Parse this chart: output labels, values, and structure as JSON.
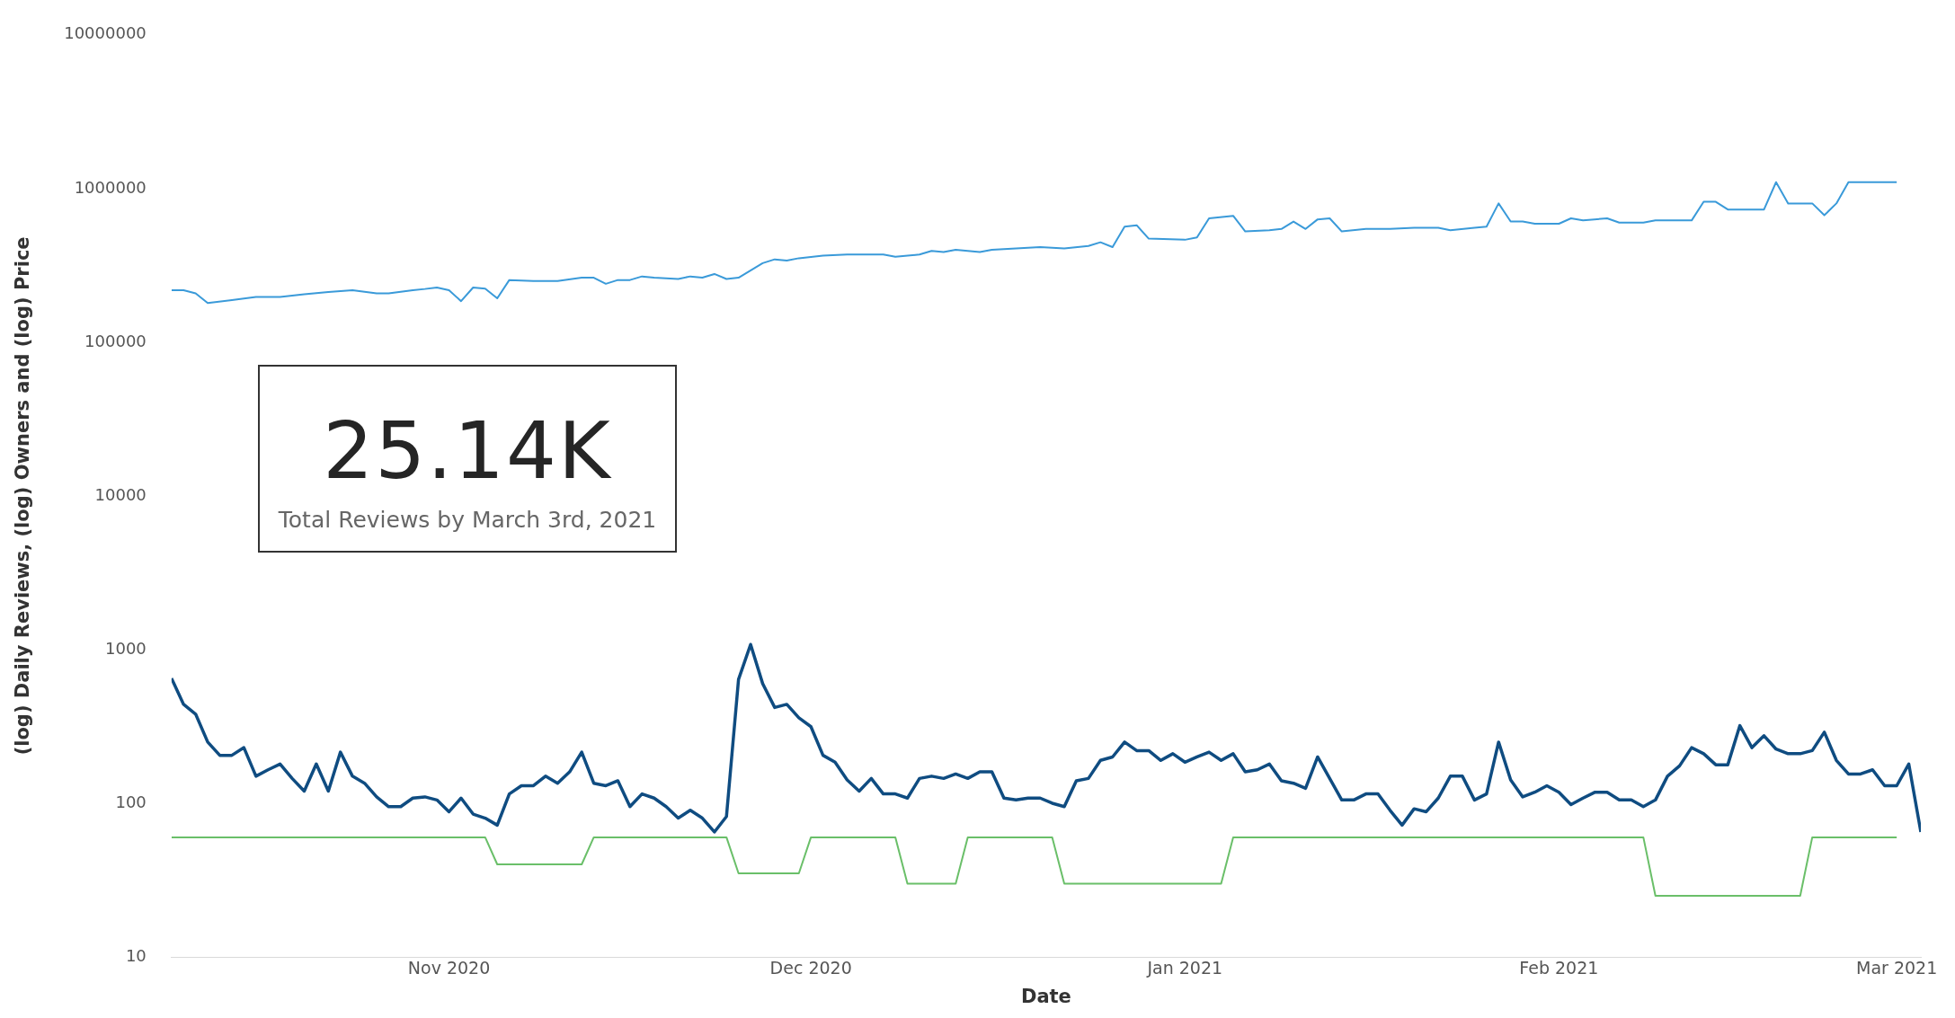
{
  "chart_data": {
    "type": "line",
    "xlabel": "Date",
    "ylabel": "(log) Daily Reviews, (log) Owners and (log) Price",
    "annotations": [
      "25.14K",
      "Total Reviews by March 3rd, 2021"
    ],
    "xticks": [
      {
        "value": "2020-11",
        "label": "Nov 2020"
      },
      {
        "value": "2020-12",
        "label": "Dec 2020"
      },
      {
        "value": "2021-01",
        "label": "Jan 2021"
      },
      {
        "value": "2021-02",
        "label": "Feb 2021"
      },
      {
        "value": "2021-03",
        "label": "Mar 2021"
      }
    ],
    "xlim": [
      "2020-10-09",
      "2021-03-03"
    ],
    "ylim": [
      10,
      10000000
    ],
    "yticks": [
      10,
      100,
      1000,
      10000,
      100000,
      1000000,
      10000000
    ],
    "log": true,
    "grid": false,
    "legend": false,
    "marker": "none",
    "line_style": "solid",
    "series": [
      {
        "color": "#3a9ad9",
        "x": [
          "2020-10-09",
          "2020-10-10",
          "2020-10-11",
          "2020-10-12",
          "2020-10-14",
          "2020-10-16",
          "2020-10-18",
          "2020-10-20",
          "2020-10-22",
          "2020-10-24",
          "2020-10-26",
          "2020-10-27",
          "2020-10-29",
          "2020-10-30",
          "2020-10-31",
          "2020-11-01",
          "2020-11-02",
          "2020-11-03",
          "2020-11-04",
          "2020-11-05",
          "2020-11-06",
          "2020-11-08",
          "2020-11-10",
          "2020-11-12",
          "2020-11-13",
          "2020-11-14",
          "2020-11-15",
          "2020-11-16",
          "2020-11-17",
          "2020-11-18",
          "2020-11-20",
          "2020-11-21",
          "2020-11-22",
          "2020-11-23",
          "2020-11-24",
          "2020-11-25",
          "2020-11-27",
          "2020-11-28",
          "2020-11-29",
          "2020-11-30",
          "2020-12-02",
          "2020-12-04",
          "2020-12-07",
          "2020-12-08",
          "2020-12-10",
          "2020-12-11",
          "2020-12-12",
          "2020-12-13",
          "2020-12-15",
          "2020-12-16",
          "2020-12-18",
          "2020-12-20",
          "2020-12-22",
          "2020-12-24",
          "2020-12-25",
          "2020-12-26",
          "2020-12-27",
          "2020-12-28",
          "2020-12-29",
          "2021-01-01",
          "2021-01-02",
          "2021-01-03",
          "2021-01-05",
          "2021-01-06",
          "2021-01-08",
          "2021-01-09",
          "2021-01-10",
          "2021-01-11",
          "2021-01-12",
          "2021-01-13",
          "2021-01-14",
          "2021-01-16",
          "2021-01-18",
          "2021-01-20",
          "2021-01-22",
          "2021-01-23",
          "2021-01-25",
          "2021-01-26",
          "2021-01-27",
          "2021-01-28",
          "2021-01-29",
          "2021-01-30",
          "2021-02-01",
          "2021-02-02",
          "2021-02-03",
          "2021-02-05",
          "2021-02-06",
          "2021-02-08",
          "2021-02-09",
          "2021-02-12",
          "2021-02-13",
          "2021-02-14",
          "2021-02-15",
          "2021-02-18",
          "2021-02-19",
          "2021-02-20",
          "2021-02-22",
          "2021-02-23",
          "2021-02-24",
          "2021-02-25",
          "2021-03-01"
        ],
        "values": [
          218000,
          218000,
          208000,
          180000,
          188000,
          197000,
          197000,
          205000,
          212000,
          218000,
          208000,
          208000,
          218000,
          222000,
          227000,
          218000,
          185000,
          227000,
          223000,
          193000,
          254000,
          250000,
          250000,
          263000,
          263000,
          240000,
          254000,
          254000,
          268000,
          263000,
          258000,
          268000,
          263000,
          278000,
          258000,
          263000,
          327000,
          346000,
          340000,
          352000,
          366000,
          372000,
          372000,
          360000,
          372000,
          393000,
          386000,
          400000,
          386000,
          400000,
          408000,
          416000,
          408000,
          423000,
          447000,
          416000,
          565000,
          577000,
          472000,
          464000,
          481000,
          640000,
          665000,
          526000,
          536000,
          546000,
          610000,
          546000,
          630000,
          640000,
          526000,
          546000,
          546000,
          556000,
          556000,
          536000,
          556000,
          565000,
          800000,
          610000,
          610000,
          590000,
          590000,
          640000,
          620000,
          640000,
          600000,
          600000,
          620000,
          620000,
          820000,
          820000,
          730000,
          730000,
          1100000,
          800000,
          800000,
          670000,
          800000,
          1100000,
          1100000
        ]
      },
      {
        "color": "#0f4c81",
        "x": [
          "2020-10-09",
          "2020-10-10",
          "2020-10-11",
          "2020-10-12",
          "2020-10-13",
          "2020-10-14",
          "2020-10-15",
          "2020-10-16",
          "2020-10-17",
          "2020-10-18",
          "2020-10-19",
          "2020-10-20",
          "2020-10-21",
          "2020-10-22",
          "2020-10-23",
          "2020-10-24",
          "2020-10-25",
          "2020-10-26",
          "2020-10-27",
          "2020-10-28",
          "2020-10-29",
          "2020-10-30",
          "2020-10-31",
          "2020-11-01",
          "2020-11-02",
          "2020-11-03",
          "2020-11-04",
          "2020-11-05",
          "2020-11-06",
          "2020-11-07",
          "2020-11-08",
          "2020-11-09",
          "2020-11-10",
          "2020-11-11",
          "2020-11-12",
          "2020-11-13",
          "2020-11-14",
          "2020-11-15",
          "2020-11-16",
          "2020-11-17",
          "2020-11-18",
          "2020-11-19",
          "2020-11-20",
          "2020-11-21",
          "2020-11-22",
          "2020-11-23",
          "2020-11-24",
          "2020-11-25",
          "2020-11-26",
          "2020-11-27",
          "2020-11-28",
          "2020-11-29",
          "2020-11-30",
          "2020-12-01",
          "2020-12-02",
          "2020-12-03",
          "2020-12-04",
          "2020-12-05",
          "2020-12-06",
          "2020-12-07",
          "2020-12-08",
          "2020-12-09",
          "2020-12-10",
          "2020-12-11",
          "2020-12-12",
          "2020-12-13",
          "2020-12-14",
          "2020-12-15",
          "2020-12-16",
          "2020-12-17",
          "2020-12-18",
          "2020-12-19",
          "2020-12-20",
          "2020-12-21",
          "2020-12-22",
          "2020-12-23",
          "2020-12-24",
          "2020-12-25",
          "2020-12-26",
          "2020-12-27",
          "2020-12-28",
          "2020-12-29",
          "2020-12-30",
          "2020-12-31",
          "2021-01-01",
          "2021-01-02",
          "2021-01-03",
          "2021-01-04",
          "2021-01-05",
          "2021-01-06",
          "2021-01-07",
          "2021-01-08",
          "2021-01-09",
          "2021-01-10",
          "2021-01-11",
          "2021-01-12",
          "2021-01-13",
          "2021-01-14",
          "2021-01-15",
          "2021-01-16",
          "2021-01-17",
          "2021-01-18",
          "2021-01-19",
          "2021-01-20",
          "2021-01-21",
          "2021-01-22",
          "2021-01-23",
          "2021-01-24",
          "2021-01-25",
          "2021-01-26",
          "2021-01-27",
          "2021-01-28",
          "2021-01-29",
          "2021-01-30",
          "2021-01-31",
          "2021-02-01",
          "2021-02-02",
          "2021-02-03",
          "2021-02-04",
          "2021-02-05",
          "2021-02-06",
          "2021-02-07",
          "2021-02-08",
          "2021-02-09",
          "2021-02-10",
          "2021-02-11",
          "2021-02-12",
          "2021-02-13",
          "2021-02-14",
          "2021-02-15",
          "2021-02-16",
          "2021-02-17",
          "2021-02-18",
          "2021-02-19",
          "2021-02-20",
          "2021-02-21",
          "2021-02-22",
          "2021-02-23",
          "2021-02-24",
          "2021-02-25",
          "2021-02-26",
          "2021-02-27",
          "2021-02-28",
          "2021-03-01",
          "2021-03-02",
          "2021-03-03"
        ],
        "values": [
          650,
          440,
          380,
          250,
          205,
          205,
          230,
          150,
          165,
          180,
          145,
          120,
          180,
          120,
          215,
          150,
          135,
          110,
          95,
          95,
          108,
          110,
          105,
          88,
          108,
          85,
          80,
          72,
          115,
          130,
          130,
          150,
          135,
          160,
          215,
          135,
          130,
          140,
          95,
          115,
          108,
          95,
          80,
          90,
          80,
          65,
          82,
          640,
          1080,
          600,
          420,
          440,
          360,
          315,
          205,
          185,
          142,
          120,
          145,
          115,
          115,
          108,
          145,
          150,
          145,
          155,
          145,
          160,
          160,
          108,
          105,
          108,
          108,
          100,
          95,
          140,
          145,
          190,
          200,
          250,
          220,
          220,
          190,
          210,
          185,
          200,
          215,
          190,
          210,
          160,
          165,
          180,
          140,
          135,
          125,
          200,
          145,
          105,
          105,
          115,
          115,
          90,
          72,
          92,
          88,
          108,
          150,
          150,
          105,
          115,
          250,
          142,
          110,
          118,
          130,
          118,
          98,
          108,
          118,
          118,
          105,
          105,
          95,
          105,
          150,
          175,
          230,
          210,
          178,
          178,
          320,
          230,
          275,
          225,
          210,
          210,
          220,
          290,
          190,
          155,
          155,
          165,
          130,
          130,
          180,
          65
        ]
      },
      {
        "color": "#6abf69",
        "x": [
          "2020-10-09",
          "2020-11-04",
          "2020-11-05",
          "2020-11-12",
          "2020-11-13",
          "2020-11-24",
          "2020-11-25",
          "2020-11-30",
          "2020-12-01",
          "2020-12-08",
          "2020-12-09",
          "2020-12-13",
          "2020-12-14",
          "2020-12-21",
          "2020-12-22",
          "2021-01-04",
          "2021-01-05",
          "2021-02-08",
          "2021-02-09",
          "2021-02-21",
          "2021-02-22",
          "2021-03-01"
        ],
        "values": [
          60,
          60,
          40,
          40,
          60,
          60,
          35,
          35,
          60,
          60,
          30,
          30,
          60,
          60,
          30,
          30,
          60,
          60,
          25,
          25,
          60,
          60
        ]
      }
    ]
  }
}
